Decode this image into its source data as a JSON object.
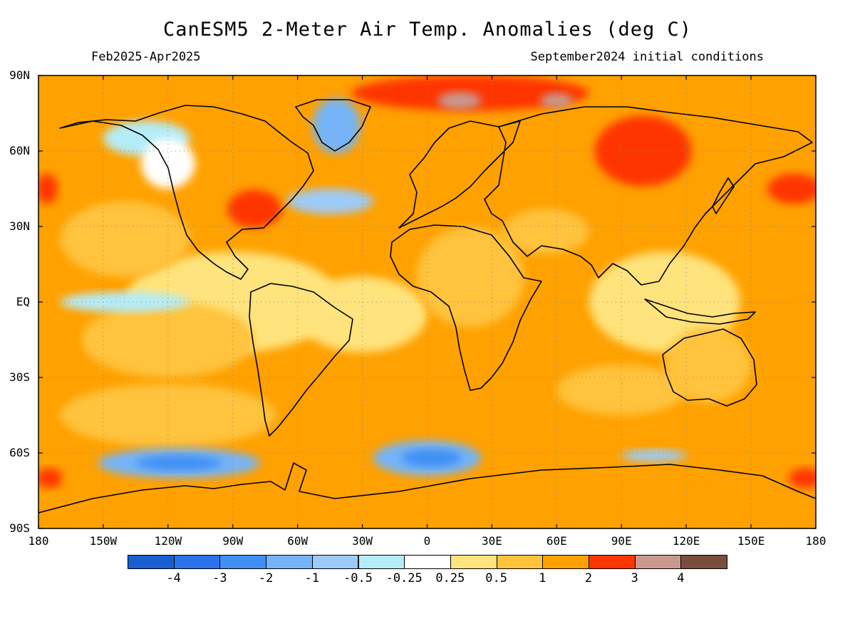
{
  "header": {
    "title": "CanESM5 2-Meter Air Temp. Anomalies (deg C)",
    "period": "Feb2025-Apr2025",
    "init": "September2024 initial conditions"
  },
  "axes": {
    "lat_labels": [
      "90N",
      "60N",
      "30N",
      "EQ",
      "30S",
      "60S",
      "90S"
    ],
    "lon_labels": [
      "180",
      "150W",
      "120W",
      "90W",
      "60W",
      "30W",
      "0",
      "30E",
      "60E",
      "90E",
      "120E",
      "150E",
      "180"
    ]
  },
  "colorbar": {
    "colors": [
      "#1a5fd1",
      "#2b73ec",
      "#3f8ff5",
      "#75b4f7",
      "#9dcbf8",
      "#b4ecf8",
      "#ffffff",
      "#ffe37c",
      "#ffc33c",
      "#ffa100",
      "#ff3500",
      "#c89a8f",
      "#7a4e3e"
    ],
    "labels": [
      "-4",
      "-3",
      "-2",
      "-1",
      "-0.5",
      "-0.25",
      "0.25",
      "0.5",
      "1",
      "2",
      "3",
      "4"
    ]
  },
  "chart_data": {
    "type": "heatmap",
    "variable": "2-Meter Air Temp. Anomalies",
    "units": "deg C",
    "x_range": [
      -180,
      180
    ],
    "y_range": [
      -90,
      90
    ],
    "grid": "dotted",
    "regions": [
      {
        "lon": 0,
        "lat": 0,
        "w": 360,
        "h": 180,
        "value": 1.5
      },
      {
        "lon": -90,
        "lat": 0,
        "w": 100,
        "h": 40,
        "value": 0.3
      },
      {
        "lon": -30,
        "lat": -5,
        "w": 60,
        "h": 30,
        "value": 0.3
      },
      {
        "lon": 110,
        "lat": 0,
        "w": 70,
        "h": 40,
        "value": 0.4
      },
      {
        "lon": -140,
        "lat": 25,
        "w": 60,
        "h": 30,
        "value": 0.7
      },
      {
        "lon": -120,
        "lat": -15,
        "w": 80,
        "h": 30,
        "value": 0.7
      },
      {
        "lon": -120,
        "lat": -45,
        "w": 100,
        "h": 25,
        "value": 0.7
      },
      {
        "lon": 20,
        "lat": 10,
        "w": 50,
        "h": 40,
        "value": 0.7
      },
      {
        "lon": 55,
        "lat": 28,
        "w": 40,
        "h": 18,
        "value": 0.7
      },
      {
        "lon": 130,
        "lat": -25,
        "w": 40,
        "h": 30,
        "value": 0.7
      },
      {
        "lon": 90,
        "lat": -35,
        "w": 60,
        "h": 20,
        "value": 0.7
      },
      {
        "lon": -140,
        "lat": 0,
        "w": 60,
        "h": 8,
        "value": -0.4
      },
      {
        "lon": -115,
        "lat": -64,
        "w": 75,
        "h": 12,
        "value": -1.3
      },
      {
        "lon": -115,
        "lat": -64,
        "w": 40,
        "h": 6,
        "value": -2.2
      },
      {
        "lon": 0,
        "lat": -62,
        "w": 50,
        "h": 14,
        "value": -1.3
      },
      {
        "lon": 2,
        "lat": -62,
        "w": 28,
        "h": 7,
        "value": -2.2
      },
      {
        "lon": -42,
        "lat": 70,
        "w": 22,
        "h": 22,
        "value": -1.3
      },
      {
        "lon": -45,
        "lat": 40,
        "w": 40,
        "h": 10,
        "value": -0.8
      },
      {
        "lon": -130,
        "lat": 65,
        "w": 40,
        "h": 14,
        "value": -0.4
      },
      {
        "lon": -120,
        "lat": 55,
        "w": 25,
        "h": 20,
        "value": 0.1
      },
      {
        "lon": 105,
        "lat": -61,
        "w": 30,
        "h": 5,
        "value": -0.8
      },
      {
        "lon": -80,
        "lat": 37,
        "w": 25,
        "h": 15,
        "value": 2.5
      },
      {
        "lon": 100,
        "lat": 60,
        "w": 45,
        "h": 28,
        "value": 2.5
      },
      {
        "lon": 20,
        "lat": 83,
        "w": 110,
        "h": 14,
        "value": 2.5
      },
      {
        "lon": 170,
        "lat": 45,
        "w": 25,
        "h": 12,
        "value": 2.5
      },
      {
        "lon": -176,
        "lat": 45,
        "w": 10,
        "h": 12,
        "value": 2.5
      },
      {
        "lon": 15,
        "lat": 80,
        "w": 20,
        "h": 7,
        "value": 3.5
      },
      {
        "lon": 60,
        "lat": 80,
        "w": 15,
        "h": 6,
        "value": 3.5
      },
      {
        "lon": 175,
        "lat": -70,
        "w": 15,
        "h": 8,
        "value": 2.5
      },
      {
        "lon": -175,
        "lat": -70,
        "w": 12,
        "h": 8,
        "value": 2.5
      },
      {
        "lon": 0,
        "lat": -80,
        "w": 360,
        "h": 12,
        "value": 1.5
      }
    ]
  }
}
